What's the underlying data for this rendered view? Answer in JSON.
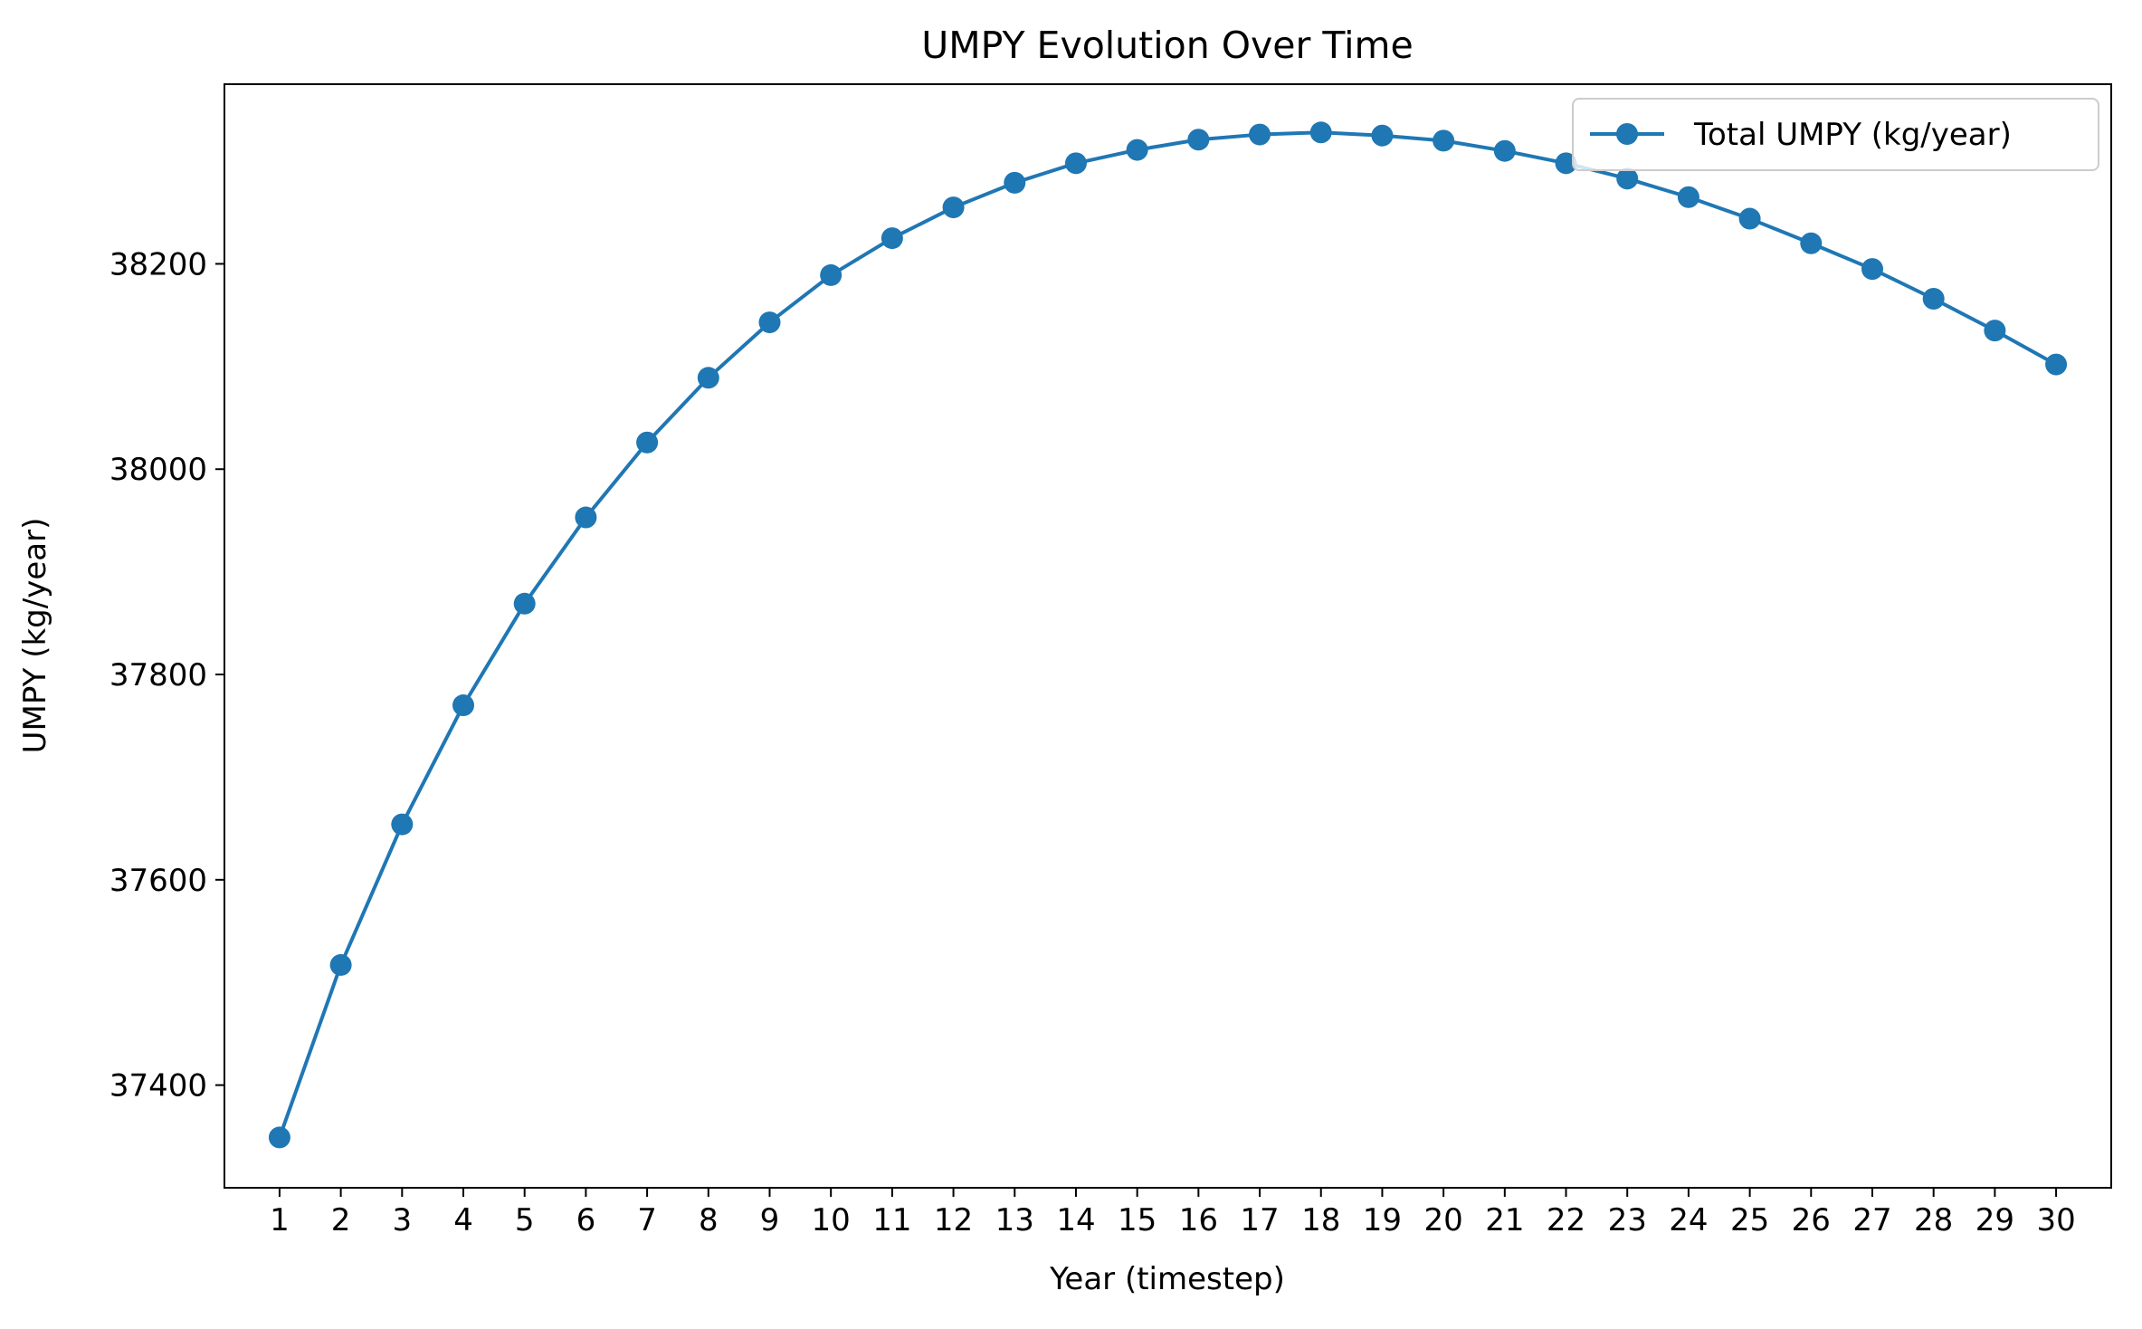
{
  "chart_data": {
    "type": "line",
    "title": "UMPY Evolution Over Time",
    "xlabel": "Year (timestep)",
    "ylabel": "UMPY (kg/year)",
    "x": [
      1,
      2,
      3,
      4,
      5,
      6,
      7,
      8,
      9,
      10,
      11,
      12,
      13,
      14,
      15,
      16,
      17,
      18,
      19,
      20,
      21,
      22,
      23,
      24,
      25,
      26,
      27,
      28,
      29,
      30
    ],
    "series": [
      {
        "name": "Total UMPY (kg/year)",
        "color": "#1f77b4",
        "marker": "circle",
        "values": [
          37349,
          37517,
          37654,
          37770,
          37869,
          37953,
          38026,
          38089,
          38143,
          38189,
          38225,
          38255,
          38279,
          38298,
          38311,
          38321,
          38326,
          38328,
          38325,
          38320,
          38310,
          38298,
          38283,
          38265,
          38244,
          38220,
          38195,
          38166,
          38135,
          38102
        ]
      }
    ],
    "xlim": [
      0.1,
      30.9
    ],
    "ylim": [
      37300,
      38375
    ],
    "xticks": [
      1,
      2,
      3,
      4,
      5,
      6,
      7,
      8,
      9,
      10,
      11,
      12,
      13,
      14,
      15,
      16,
      17,
      18,
      19,
      20,
      21,
      22,
      23,
      24,
      25,
      26,
      27,
      28,
      29,
      30
    ],
    "yticks": [
      37400,
      37600,
      37800,
      38000,
      38200
    ],
    "grid": false,
    "legend_position": "top-right"
  }
}
